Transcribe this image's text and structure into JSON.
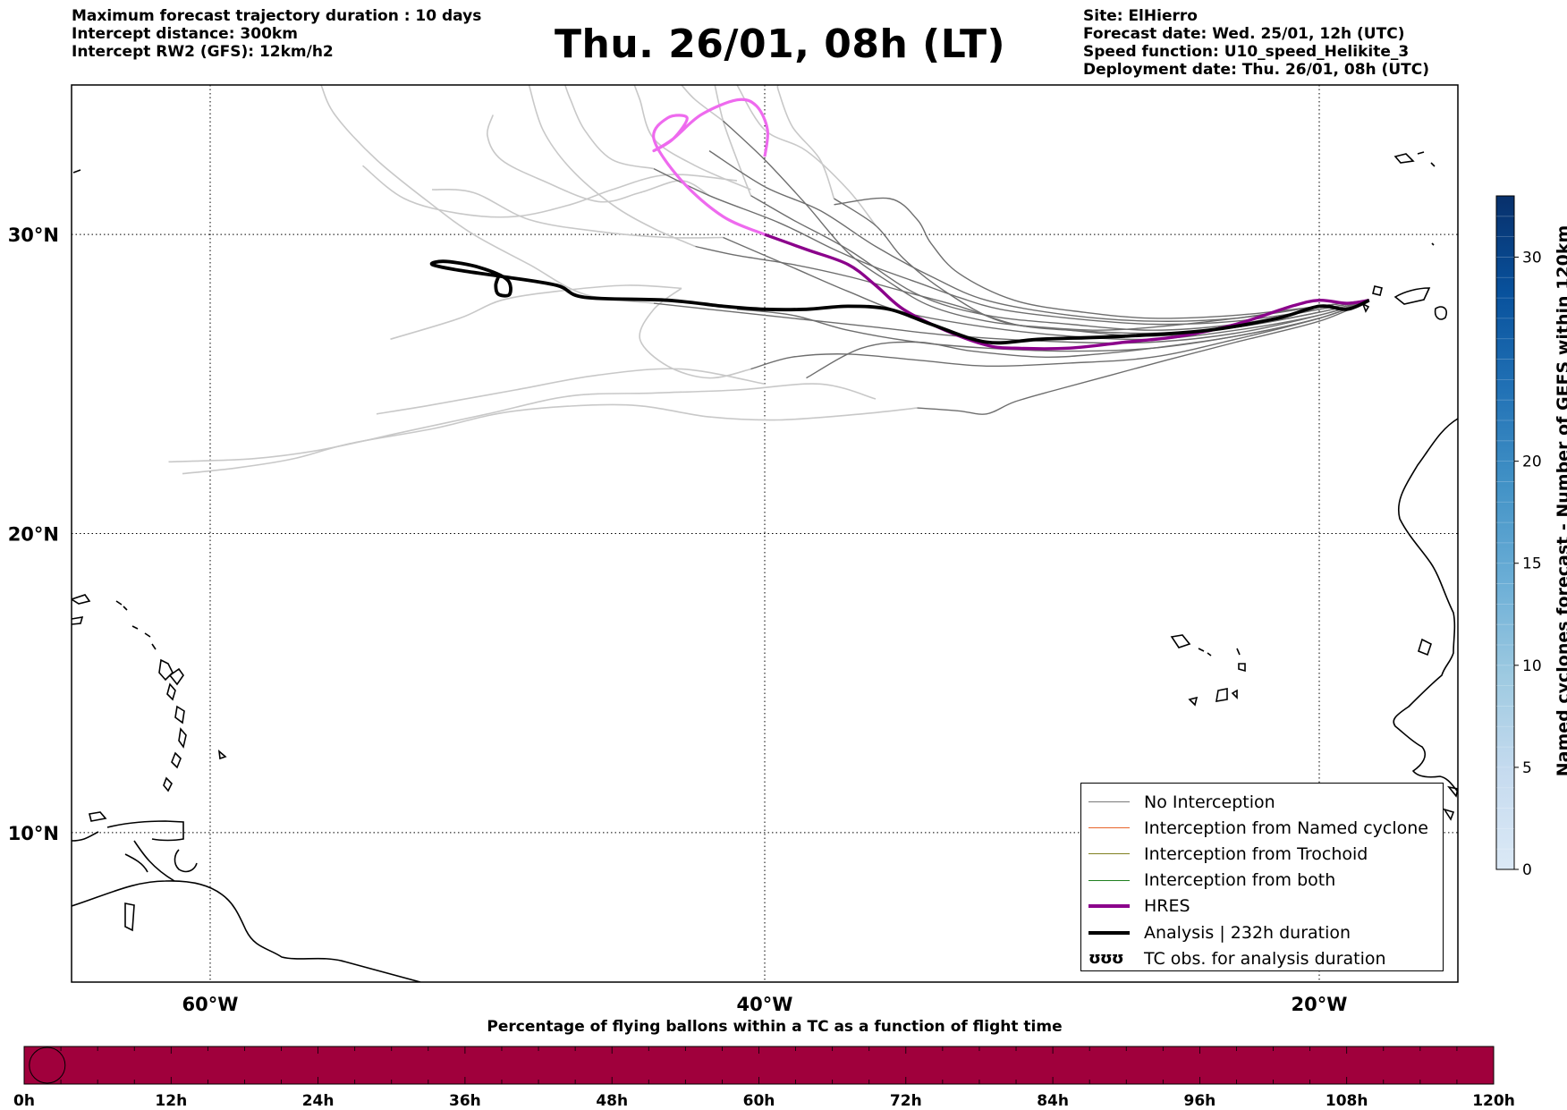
{
  "header": {
    "left_lines": [
      "Maximum forecast trajectory duration : 10 days",
      "Intercept distance: 300km",
      "Intercept RW2 (GFS):  12km/h2"
    ],
    "title": "Thu. 26/01, 08h (LT)",
    "right_lines": [
      "Site: ElHierro",
      "Forecast date: Wed. 25/01, 12h (UTC)",
      "Speed function: U10_speed_Helikite_3",
      "Deployment date: Thu. 26/01, 08h (UTC)"
    ]
  },
  "map": {
    "lon_range": [
      -65,
      -15
    ],
    "lat_range": [
      5,
      35
    ],
    "gridlines_lon": [
      -60,
      -40,
      -20
    ],
    "gridlines_lat": [
      10,
      20,
      30
    ],
    "lon_labels": [
      "60°W",
      "40°W",
      "20°W"
    ],
    "lat_labels": [
      "10°N",
      "20°N",
      "30°N"
    ],
    "colors": {
      "gfs_near": "#6e6e6e",
      "gfs_far": "#c8c8c8",
      "hres": "#8b008b",
      "hres_tail": "#ee6aee",
      "analysis": "#000000",
      "coast": "#000000"
    }
  },
  "trajectories": {
    "gfs_near": [
      [
        [
          -18.2,
          27.8
        ],
        [
          -20,
          27.6
        ],
        [
          -23,
          27.2
        ],
        [
          -26,
          27.1
        ],
        [
          -29,
          27.3
        ],
        [
          -32,
          27.8
        ],
        [
          -34,
          28.6
        ],
        [
          -36,
          29.6
        ],
        [
          -38,
          30.8
        ],
        [
          -40,
          31.6
        ],
        [
          -42,
          32.8
        ]
      ],
      [
        [
          -18.2,
          27.8
        ],
        [
          -20,
          27.5
        ],
        [
          -23,
          27.0
        ],
        [
          -26,
          26.8
        ],
        [
          -29,
          27.0
        ],
        [
          -32,
          27.3
        ],
        [
          -34.5,
          28.0
        ],
        [
          -37,
          29.5
        ],
        [
          -39,
          30.5
        ],
        [
          -40.5,
          31.3
        ]
      ],
      [
        [
          -18.2,
          27.8
        ],
        [
          -20,
          27.4
        ],
        [
          -23,
          26.9
        ],
        [
          -26,
          26.6
        ],
        [
          -29,
          26.8
        ],
        [
          -31.5,
          27.1
        ],
        [
          -33.5,
          28.1
        ],
        [
          -35,
          29.2
        ],
        [
          -36,
          30.3
        ],
        [
          -37.5,
          31.2
        ]
      ],
      [
        [
          -18.2,
          27.8
        ],
        [
          -20,
          27.6
        ],
        [
          -23,
          27.3
        ],
        [
          -26,
          27.2
        ],
        [
          -28.5,
          27.4
        ],
        [
          -31,
          27.8
        ],
        [
          -33,
          28.7
        ],
        [
          -34,
          29.7
        ],
        [
          -34.5,
          30.5
        ],
        [
          -35.5,
          31.2
        ],
        [
          -37.5,
          31.0
        ]
      ],
      [
        [
          -18.2,
          27.8
        ],
        [
          -20,
          27.3
        ],
        [
          -23,
          26.8
        ],
        [
          -26,
          26.5
        ],
        [
          -29,
          26.6
        ],
        [
          -32,
          26.9
        ],
        [
          -35,
          27.4
        ],
        [
          -37,
          28.1
        ],
        [
          -39,
          28.9
        ],
        [
          -40.5,
          29.5
        ],
        [
          -41.5,
          29.9
        ]
      ],
      [
        [
          -18.2,
          27.8
        ],
        [
          -20,
          27.3
        ],
        [
          -23,
          26.7
        ],
        [
          -26,
          26.4
        ],
        [
          -29,
          26.4
        ],
        [
          -33,
          26.6
        ],
        [
          -36,
          26.9
        ],
        [
          -39,
          27.2
        ],
        [
          -42,
          27.5
        ],
        [
          -44,
          27.7
        ]
      ],
      [
        [
          -18.2,
          27.8
        ],
        [
          -20,
          27.2
        ],
        [
          -23,
          26.6
        ],
        [
          -26,
          26.2
        ],
        [
          -29,
          26.1
        ],
        [
          -32,
          26.2
        ],
        [
          -34.5,
          26.4
        ],
        [
          -37,
          26.8
        ],
        [
          -39,
          27.3
        ],
        [
          -41,
          27.5
        ]
      ],
      [
        [
          -18.2,
          27.8
        ],
        [
          -20,
          27.2
        ],
        [
          -23,
          26.5
        ],
        [
          -26,
          25.9
        ],
        [
          -29,
          25.7
        ],
        [
          -32,
          25.6
        ],
        [
          -34.5,
          25.8
        ],
        [
          -37,
          26.0
        ],
        [
          -39,
          25.9
        ],
        [
          -40.5,
          25.5
        ]
      ],
      [
        [
          -18.2,
          27.8
        ],
        [
          -20,
          27.1
        ],
        [
          -23,
          26.4
        ],
        [
          -25.5,
          25.8
        ],
        [
          -27.5,
          25.3
        ],
        [
          -29.5,
          24.8
        ],
        [
          -31,
          24.4
        ],
        [
          -32,
          24.0
        ],
        [
          -33,
          24.1
        ],
        [
          -34.5,
          24.2
        ]
      ],
      [
        [
          -18.2,
          27.8
        ],
        [
          -20,
          27.2
        ],
        [
          -23,
          26.6
        ],
        [
          -26,
          26.2
        ],
        [
          -28,
          26.0
        ],
        [
          -30,
          25.9
        ],
        [
          -32.5,
          26.1
        ],
        [
          -34.5,
          26.4
        ],
        [
          -36.5,
          26.2
        ],
        [
          -38.5,
          25.2
        ]
      ],
      [
        [
          -18.2,
          27.8
        ],
        [
          -20,
          27.5
        ],
        [
          -23,
          27.1
        ],
        [
          -26,
          27.0
        ],
        [
          -29,
          27.2
        ],
        [
          -31.5,
          27.5
        ],
        [
          -33,
          27.9
        ],
        [
          -34.5,
          28.4
        ],
        [
          -36,
          28.9
        ],
        [
          -37.5,
          29.5
        ],
        [
          -39.5,
          30.4
        ],
        [
          -42,
          31.3
        ],
        [
          -44,
          32.2
        ]
      ],
      [
        [
          -18.2,
          27.8
        ],
        [
          -20,
          27.4
        ],
        [
          -23,
          26.9
        ],
        [
          -26,
          26.7
        ],
        [
          -29,
          26.8
        ],
        [
          -31,
          27.0
        ],
        [
          -33,
          27.6
        ],
        [
          -35,
          28.1
        ],
        [
          -37,
          28.6
        ],
        [
          -39,
          29.0
        ],
        [
          -41,
          29.3
        ],
        [
          -42.5,
          29.6
        ]
      ],
      [
        [
          -18.2,
          27.8
        ],
        [
          -20,
          27.6
        ],
        [
          -23,
          27.2
        ],
        [
          -26,
          26.9
        ],
        [
          -28,
          26.8
        ],
        [
          -30,
          26.9
        ],
        [
          -32,
          27.1
        ],
        [
          -34,
          27.6
        ],
        [
          -35.5,
          28.4
        ],
        [
          -37,
          29.4
        ],
        [
          -38.5,
          31.0
        ],
        [
          -40,
          32.5
        ],
        [
          -41.5,
          33.8
        ]
      ]
    ],
    "gfs_far": [
      [
        [
          -40.5,
          31.5
        ],
        [
          -42.5,
          32.3
        ],
        [
          -44,
          33.2
        ],
        [
          -44.5,
          34.5
        ],
        [
          -44.7,
          35.0
        ]
      ],
      [
        [
          -41,
          31.8
        ],
        [
          -43.5,
          32.0
        ],
        [
          -45.5,
          31.5
        ],
        [
          -47,
          31.0
        ],
        [
          -49,
          30.6
        ],
        [
          -51,
          30.7
        ],
        [
          -53,
          31.2
        ],
        [
          -54.5,
          32.3
        ]
      ],
      [
        [
          -41.5,
          29.9
        ],
        [
          -43.5,
          29.9
        ],
        [
          -46,
          30.1
        ],
        [
          -48.5,
          30.5
        ],
        [
          -50.5,
          31.4
        ],
        [
          -52,
          31.5
        ]
      ],
      [
        [
          -42,
          31.3
        ],
        [
          -43,
          31.8
        ],
        [
          -44.5,
          31.4
        ],
        [
          -46,
          31.1
        ],
        [
          -48,
          31.8
        ],
        [
          -49.5,
          32.5
        ],
        [
          -50,
          33.3
        ],
        [
          -49.8,
          34.0
        ]
      ],
      [
        [
          -44,
          32.2
        ],
        [
          -45.5,
          32.5
        ],
        [
          -46.5,
          33.5
        ],
        [
          -47,
          34.5
        ],
        [
          -47.2,
          35.0
        ]
      ],
      [
        [
          -37.5,
          31.2
        ],
        [
          -38,
          32.5
        ],
        [
          -39,
          33.6
        ],
        [
          -39.5,
          34.8
        ],
        [
          -39.5,
          35.0
        ]
      ],
      [
        [
          -40.5,
          31.3
        ],
        [
          -41,
          32.5
        ],
        [
          -41.5,
          33.8
        ],
        [
          -41.8,
          35.0
        ]
      ],
      [
        [
          -40.5,
          25.5
        ],
        [
          -42,
          25.2
        ],
        [
          -43.5,
          25.6
        ],
        [
          -44.5,
          26.5
        ],
        [
          -44,
          27.5
        ],
        [
          -43,
          28.2
        ]
      ],
      [
        [
          -40,
          25.0
        ],
        [
          -43,
          25.5
        ],
        [
          -46,
          25.3
        ],
        [
          -49,
          24.8
        ],
        [
          -52,
          24.3
        ],
        [
          -54,
          24.0
        ]
      ],
      [
        [
          -34.5,
          24.2
        ],
        [
          -36.5,
          24.0
        ],
        [
          -39.5,
          23.8
        ],
        [
          -42,
          23.9
        ],
        [
          -45,
          24.3
        ],
        [
          -49,
          24.1
        ],
        [
          -52,
          23.5
        ],
        [
          -55,
          23.0
        ],
        [
          -57,
          22.5
        ],
        [
          -59,
          22.2
        ],
        [
          -61,
          22.0
        ]
      ],
      [
        [
          -36,
          24.5
        ],
        [
          -38,
          25.0
        ],
        [
          -41,
          24.8
        ],
        [
          -44,
          24.7
        ],
        [
          -47,
          24.6
        ],
        [
          -50,
          24.0
        ],
        [
          -53,
          23.4
        ],
        [
          -56,
          22.8
        ],
        [
          -58.5,
          22.5
        ],
        [
          -61.5,
          22.4
        ]
      ],
      [
        [
          -43,
          28.2
        ],
        [
          -45,
          28.3
        ],
        [
          -47.5,
          28.1
        ],
        [
          -49.5,
          27.8
        ],
        [
          -51,
          27.2
        ],
        [
          -53.5,
          26.5
        ]
      ],
      [
        [
          -44,
          27.7
        ],
        [
          -46.5,
          28.0
        ],
        [
          -48.5,
          29.0
        ],
        [
          -50.5,
          30.0
        ],
        [
          -52,
          31.0
        ],
        [
          -54,
          32.5
        ],
        [
          -55.5,
          34.0
        ],
        [
          -56,
          35.0
        ]
      ],
      [
        [
          -42.5,
          29.6
        ],
        [
          -44,
          30.2
        ],
        [
          -45.5,
          31.0
        ],
        [
          -47,
          32.2
        ],
        [
          -48,
          33.5
        ],
        [
          -48.5,
          35.0
        ]
      ],
      [
        [
          -41.5,
          33.8
        ],
        [
          -42.5,
          34.5
        ],
        [
          -43,
          35.0
        ]
      ],
      [
        [
          -36,
          30.3
        ],
        [
          -37,
          31.5
        ],
        [
          -38.5,
          32.8
        ],
        [
          -40,
          33.5
        ],
        [
          -41,
          35.0
        ]
      ]
    ],
    "hres": [
      [
        -18.2,
        27.8
      ],
      [
        -19,
        27.7
      ],
      [
        -20,
        27.8
      ],
      [
        -21,
        27.6
      ],
      [
        -23,
        27.0
      ],
      [
        -25,
        26.6
      ],
      [
        -27,
        26.4
      ],
      [
        -29,
        26.2
      ],
      [
        -31,
        26.2
      ],
      [
        -32,
        26.3
      ],
      [
        -33.5,
        26.8
      ],
      [
        -35,
        27.5
      ],
      [
        -36,
        28.3
      ],
      [
        -37,
        29.0
      ],
      [
        -38.5,
        29.5
      ],
      [
        -40,
        30.0
      ]
    ],
    "hres_tail": [
      [
        -40,
        30.0
      ],
      [
        -41.5,
        30.6
      ],
      [
        -43,
        31.8
      ],
      [
        -44,
        33.2
      ],
      [
        -43.5,
        33.9
      ],
      [
        -42.8,
        33.9
      ],
      [
        -43.3,
        33.2
      ],
      [
        -44,
        32.8
      ],
      [
        -43.3,
        33.2
      ],
      [
        -42.3,
        34.0
      ],
      [
        -41,
        34.5
      ],
      [
        -40.3,
        34.3
      ],
      [
        -39.9,
        33.5
      ],
      [
        -40.0,
        32.6
      ]
    ],
    "analysis": [
      [
        -18.2,
        27.8
      ],
      [
        -19,
        27.5
      ],
      [
        -20,
        27.6
      ],
      [
        -21.5,
        27.2
      ],
      [
        -24,
        26.8
      ],
      [
        -27,
        26.6
      ],
      [
        -30,
        26.5
      ],
      [
        -32,
        26.4
      ],
      [
        -34,
        27.0
      ],
      [
        -35.5,
        27.5
      ],
      [
        -37,
        27.6
      ],
      [
        -38.5,
        27.5
      ],
      [
        -40,
        27.5
      ],
      [
        -41.5,
        27.6
      ],
      [
        -43.5,
        27.8
      ],
      [
        -46.5,
        27.9
      ],
      [
        -47.5,
        28.3
      ],
      [
        -49.5,
        28.6
      ],
      [
        -51,
        28.8
      ],
      [
        -52,
        29.0
      ],
      [
        -51.5,
        29.1
      ],
      [
        -50.3,
        28.9
      ],
      [
        -49.3,
        28.5
      ],
      [
        -49.2,
        28.0
      ],
      [
        -49.6,
        28.0
      ],
      [
        -49.7,
        28.3
      ],
      [
        -49.6,
        28.6
      ]
    ]
  },
  "colorbar": {
    "label": "Named cyclones forecast - Number of GEFS within 120km",
    "min": 0,
    "max": 33,
    "ticks": [
      0,
      5,
      10,
      15,
      20,
      30
    ],
    "stops": [
      "#dbe9f6",
      "#c6dbef",
      "#9ecae1",
      "#6baed6",
      "#4292c6",
      "#2171b5",
      "#08519c",
      "#08306b"
    ]
  },
  "legend": {
    "items": [
      {
        "label": "No Interception",
        "color": "#7a7a7a",
        "width": 1.5
      },
      {
        "label": "Interception from Named cyclone",
        "color": "#e8642a",
        "width": 1.5
      },
      {
        "label": "Interception from Trochoid",
        "color": "#808020",
        "width": 1.5
      },
      {
        "label": "Interception from both",
        "color": "#208020",
        "width": 1.5
      },
      {
        "label": "HRES",
        "color": "#8b008b",
        "width": 4
      },
      {
        "label": "Analysis | 232h duration",
        "color": "#000000",
        "width": 4
      }
    ],
    "tc_glyph": "ʊʊʊ",
    "tc_label": "TC obs. for analysis duration"
  },
  "flight_bar": {
    "title": "Percentage of flying ballons within a TC as a function of flight time",
    "ticks": [
      "0h",
      "12h",
      "24h",
      "36h",
      "48h",
      "60h",
      "72h",
      "84h",
      "96h",
      "108h",
      "120h"
    ],
    "color": "#a0003c",
    "max_hours": 120,
    "marker_hours": 1.3
  }
}
